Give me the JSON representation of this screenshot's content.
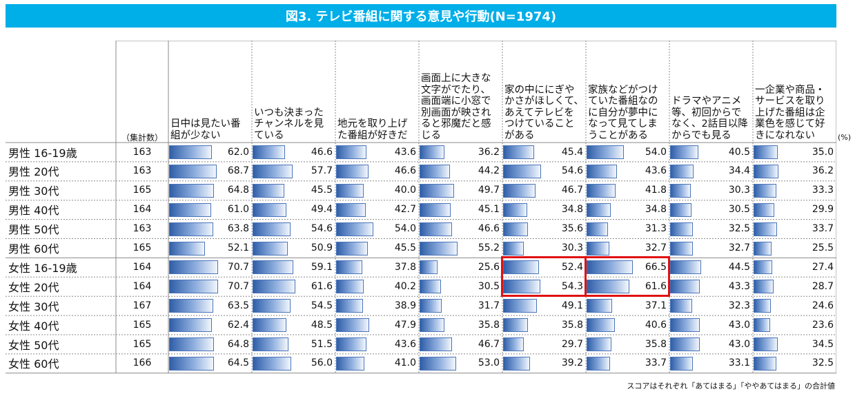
{
  "title": "図3. テレビ番組に関する意見や行動(N=1974)",
  "n_header": "（集計数）",
  "unit": "(%)",
  "footnote": "スコアはそれぞれ「あてはまる」「ややあてはまる」の合計値",
  "colors": {
    "banner": "#00aee8",
    "bar": "#4a74b8",
    "highlight": "#e01010",
    "gridline": "#888888"
  },
  "chart_data": {
    "type": "table",
    "title": "図3. テレビ番組に関する意見や行動(N=1974)",
    "unit": "%",
    "columns": [
      "日中は見たい番組が少ない",
      "いつも決まったチャンネルを見ている",
      "地元を取り上げた番組が好きだ",
      "画面上に大きな文字がでたり、画面端に小窓で別画面が映されると邪魔だと感じる",
      "家の中ににぎやかさがほしくて、あえてテレビをつけていることがある",
      "家族などがつけていた番組なのに自分が夢中になって見てしまうことがある",
      "ドラマやアニメ等、初回からでなく、2話目以降からでも見る",
      "一企業や商品・サービスを取り上げた番組は企業色を感じて好きになれない"
    ],
    "rows": [
      {
        "label": "男性 16-19歳",
        "n": "163",
        "values": [
          "62.0",
          "46.6",
          "43.6",
          "36.2",
          "45.4",
          "54.0",
          "40.5",
          "35.0"
        ]
      },
      {
        "label": "男性 20代",
        "n": "163",
        "values": [
          "68.7",
          "57.7",
          "46.6",
          "44.2",
          "54.6",
          "43.6",
          "34.4",
          "36.2"
        ]
      },
      {
        "label": "男性 30代",
        "n": "165",
        "values": [
          "64.8",
          "45.5",
          "40.0",
          "49.7",
          "46.7",
          "41.8",
          "30.3",
          "33.3"
        ]
      },
      {
        "label": "男性 40代",
        "n": "164",
        "values": [
          "61.0",
          "49.4",
          "42.7",
          "45.1",
          "34.8",
          "34.8",
          "30.5",
          "29.9"
        ]
      },
      {
        "label": "男性 50代",
        "n": "163",
        "values": [
          "63.8",
          "54.6",
          "54.0",
          "46.6",
          "35.6",
          "31.3",
          "32.5",
          "33.7"
        ]
      },
      {
        "label": "男性 60代",
        "n": "165",
        "values": [
          "52.1",
          "50.9",
          "45.5",
          "55.2",
          "30.3",
          "32.7",
          "32.7",
          "25.5"
        ]
      },
      {
        "label": "女性 16-19歳",
        "n": "164",
        "values": [
          "70.7",
          "59.1",
          "37.8",
          "25.6",
          "52.4",
          "66.5",
          "44.5",
          "27.4"
        ]
      },
      {
        "label": "女性 20代",
        "n": "164",
        "values": [
          "70.7",
          "61.6",
          "40.2",
          "30.5",
          "54.3",
          "61.6",
          "43.3",
          "28.7"
        ]
      },
      {
        "label": "女性 30代",
        "n": "167",
        "values": [
          "63.5",
          "54.5",
          "38.9",
          "31.7",
          "49.1",
          "37.1",
          "32.3",
          "24.6"
        ]
      },
      {
        "label": "女性 40代",
        "n": "165",
        "values": [
          "62.4",
          "48.5",
          "47.9",
          "35.8",
          "35.8",
          "40.6",
          "43.0",
          "23.6"
        ]
      },
      {
        "label": "女性 50代",
        "n": "165",
        "values": [
          "64.8",
          "51.5",
          "43.6",
          "46.7",
          "29.7",
          "35.8",
          "43.0",
          "34.5"
        ]
      },
      {
        "label": "女性 60代",
        "n": "166",
        "values": [
          "64.5",
          "56.0",
          "41.0",
          "53.0",
          "39.2",
          "33.7",
          "33.1",
          "32.5"
        ]
      }
    ],
    "highlights": [
      {
        "column": 4,
        "rows": [
          6,
          7
        ]
      },
      {
        "column": 5,
        "rows": [
          6,
          7
        ]
      }
    ]
  }
}
